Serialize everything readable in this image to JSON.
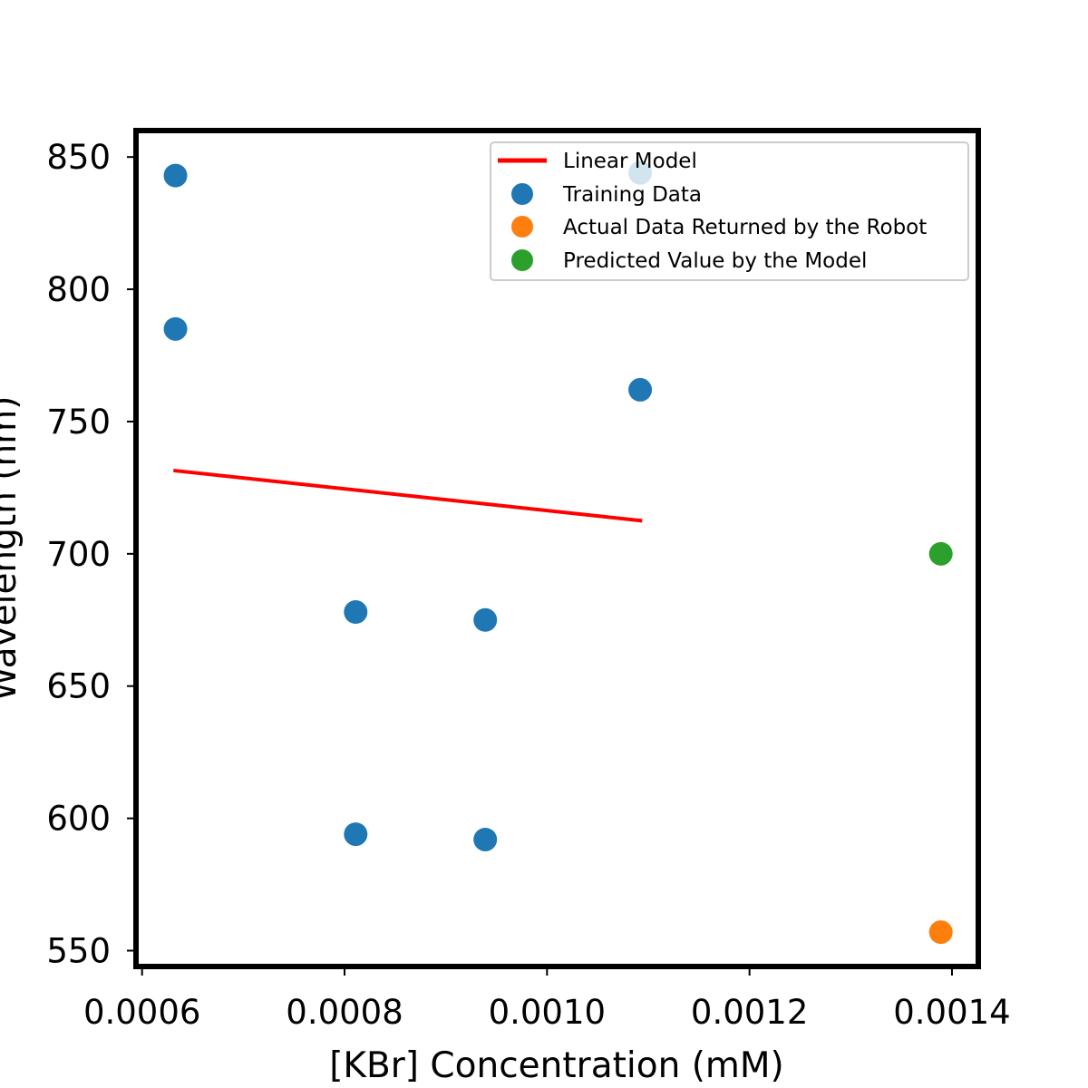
{
  "chart_data": {
    "type": "scatter",
    "title": "",
    "xlabel": "[KBr] Concentration (mM)",
    "ylabel": "Wavelength (nm)",
    "xlim": [
      0.000594,
      0.001426
    ],
    "ylim": [
      544,
      860
    ],
    "xticks": [
      0.0006,
      0.0008,
      0.001,
      0.0012,
      0.0014
    ],
    "xtick_labels": [
      "0.0006",
      "0.0008",
      "0.0010",
      "0.0012",
      "0.0014"
    ],
    "yticks": [
      550,
      600,
      650,
      700,
      750,
      800,
      850
    ],
    "ytick_labels": [
      "550",
      "600",
      "650",
      "700",
      "750",
      "800",
      "850"
    ],
    "grid": false,
    "legend_position": "top-right",
    "series": [
      {
        "name": "Linear Model",
        "kind": "line",
        "color": "#ff0000",
        "x": [
          0.000631,
          0.001094
        ],
        "y": [
          731.5,
          712.5
        ]
      },
      {
        "name": "Training Data",
        "kind": "scatter",
        "color": "#1f77b4",
        "x": [
          0.000633,
          0.000633,
          0.000811,
          0.000811,
          0.000939,
          0.000939,
          0.001092,
          0.001092
        ],
        "y": [
          843,
          785,
          678,
          594,
          675,
          592,
          844,
          762
        ]
      },
      {
        "name": "Actual Data Returned by the Robot",
        "kind": "scatter",
        "color": "#ff7f0e",
        "x": [
          0.001389
        ],
        "y": [
          557
        ]
      },
      {
        "name": "Predicted Value by the Model",
        "kind": "scatter",
        "color": "#2ca02c",
        "x": [
          0.001389
        ],
        "y": [
          700
        ]
      }
    ]
  }
}
